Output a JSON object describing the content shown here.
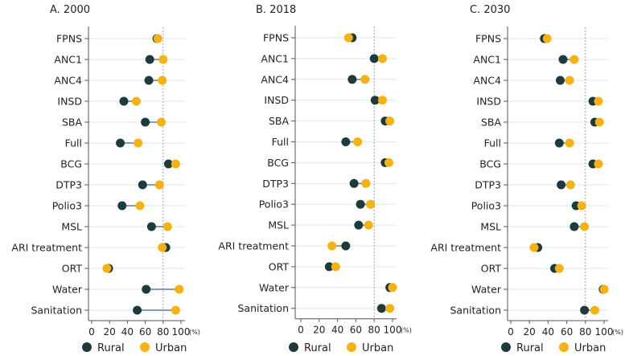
{
  "chart_data": [
    {
      "type": "dumbbell",
      "title": "A. 2000",
      "categories": [
        "FPNS",
        "ANC1",
        "ANC4",
        "INSD",
        "SBA",
        "Full",
        "BCG",
        "DTP3",
        "Polio3",
        "MSL",
        "ARI treatment",
        "ORT",
        "Water",
        "Sanitation"
      ],
      "series": [
        {
          "name": "Rural",
          "values": [
            73,
            65,
            64,
            36,
            60,
            32,
            86,
            57,
            34,
            67,
            83,
            19,
            61,
            51
          ]
        },
        {
          "name": "Urban",
          "values": [
            74,
            80,
            79,
            50,
            78,
            52,
            94,
            76,
            54,
            85,
            79,
            17,
            98,
            94
          ]
        }
      ],
      "x_ticks": [
        "0",
        "20",
        "40",
        "60",
        "80",
        "100"
      ],
      "x_unit": "(%)",
      "xlim": [
        0,
        100
      ],
      "reference_line": 80
    },
    {
      "type": "dumbbell",
      "title": "B. 2018",
      "categories": [
        "FPNS",
        "ANC1",
        "ANC4",
        "INSD",
        "SBA",
        "Full",
        "BCG",
        "DTP3",
        "Polio3",
        "MSL",
        "ARI treatment",
        "ORT",
        "Water",
        "Sanitation"
      ],
      "series": [
        {
          "name": "Rural",
          "values": [
            56,
            80,
            56,
            81,
            92,
            49,
            92,
            58,
            65,
            63,
            49,
            31,
            97,
            88
          ]
        },
        {
          "name": "Urban",
          "values": [
            52,
            89,
            70,
            89,
            97,
            62,
            96,
            71,
            76,
            74,
            34,
            38,
            100,
            97
          ]
        }
      ],
      "x_ticks": [
        "0",
        "20",
        "40",
        "60",
        "80",
        "100"
      ],
      "x_unit": "(%)",
      "xlim": [
        0,
        100
      ],
      "reference_line": 80
    },
    {
      "type": "dumbbell",
      "title": "C. 2030",
      "categories": [
        "FPNS",
        "ANC1",
        "ANC4",
        "INSD",
        "SBA",
        "Full",
        "BCG",
        "DTP3",
        "Polio3",
        "MSL",
        "ARI treatment",
        "ORT",
        "Water",
        "Sanitation"
      ],
      "series": [
        {
          "name": "Rural",
          "values": [
            36,
            56,
            53,
            88,
            90,
            52,
            88,
            54,
            70,
            68,
            29,
            47,
            99,
            79
          ]
        },
        {
          "name": "Urban",
          "values": [
            39,
            68,
            63,
            94,
            95,
            63,
            94,
            64,
            76,
            79,
            25,
            52,
            100,
            90
          ]
        }
      ],
      "x_ticks": [
        "0",
        "20",
        "40",
        "60",
        "80",
        "100"
      ],
      "x_unit": "(%)",
      "xlim": [
        0,
        100
      ],
      "reference_line": 80
    }
  ],
  "legend": {
    "rural": "Rural",
    "urban": "Urban"
  },
  "colors": {
    "rural": "#1d3b3f",
    "urban": "#f7b20f",
    "connector": "#5b7d95",
    "grid": "#dde8ee"
  }
}
